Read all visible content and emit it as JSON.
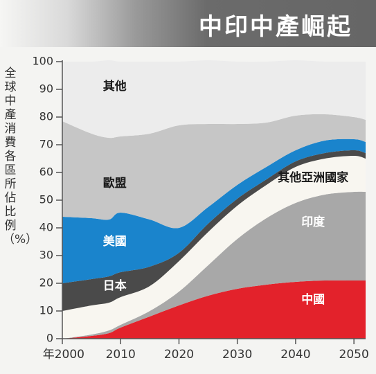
{
  "title": "中印中產崛起",
  "chart_data": {
    "type": "area",
    "title": "中印中產崛起",
    "ylabel": "全球中產消費各區所佔比例（%）",
    "xlabel": "",
    "x_ticks": [
      {
        "value": 2000,
        "label": "年2000"
      },
      {
        "value": 2010,
        "label": "2010"
      },
      {
        "value": 2020,
        "label": "2020"
      },
      {
        "value": 2030,
        "label": "2030"
      },
      {
        "value": 2040,
        "label": "2040"
      },
      {
        "value": 2050,
        "label": "2050"
      }
    ],
    "y_ticks": [
      0,
      10,
      20,
      30,
      40,
      50,
      60,
      70,
      80,
      90,
      100
    ],
    "xlim": [
      2000,
      2052
    ],
    "ylim": [
      0,
      100
    ],
    "stacked": true,
    "x": [
      2000,
      2005,
      2008,
      2010,
      2015,
      2020,
      2025,
      2030,
      2035,
      2040,
      2045,
      2050,
      2052
    ],
    "series": [
      {
        "name": "中國",
        "color": "#e3222b",
        "label_x": 2043,
        "label_y": 14,
        "values": [
          0,
          1,
          2,
          4,
          8,
          12,
          15.5,
          18,
          19.5,
          20.5,
          21,
          21,
          21
        ]
      },
      {
        "name": "印度",
        "color": "#a8a8a8",
        "label_x": 2043,
        "label_y": 42,
        "values": [
          0,
          0.5,
          1,
          1,
          2,
          5,
          11,
          18,
          24,
          28.5,
          31,
          32,
          32
        ]
      },
      {
        "name": "其他亞洲國家",
        "color": "#f8f6f0",
        "label_x": 2043,
        "label_y": 58,
        "values": [
          10,
          10.5,
          10,
          10,
          9,
          11,
          12,
          12,
          12,
          13,
          13,
          13,
          12
        ]
      },
      {
        "name": "日本",
        "color": "#4a4a4a",
        "label_x": 2009,
        "label_y": 19,
        "values": [
          10,
          9.5,
          9.5,
          9,
          7,
          3,
          3,
          2.5,
          2,
          2,
          2,
          2,
          2
        ]
      },
      {
        "name": "美國",
        "color": "#1a84cc",
        "label_x": 2009,
        "label_y": 35,
        "values": [
          24,
          22,
          20.5,
          21.5,
          17,
          9,
          6,
          5,
          4.5,
          4,
          4.5,
          4,
          4
        ]
      },
      {
        "name": "歐盟",
        "color": "#c6c6c6",
        "label_x": 2009,
        "label_y": 56,
        "values": [
          34.5,
          30.5,
          29.5,
          27.5,
          31,
          37,
          30,
          22,
          16,
          12.5,
          9.5,
          8,
          8
        ]
      },
      {
        "name": "其他",
        "color": "#ececec",
        "label_x": 2009,
        "label_y": 91,
        "values": [
          21.5,
          26,
          28,
          27,
          26,
          23,
          23,
          22.5,
          22,
          20,
          19,
          20,
          21
        ]
      }
    ],
    "grid": false,
    "legend": "inline labels"
  }
}
